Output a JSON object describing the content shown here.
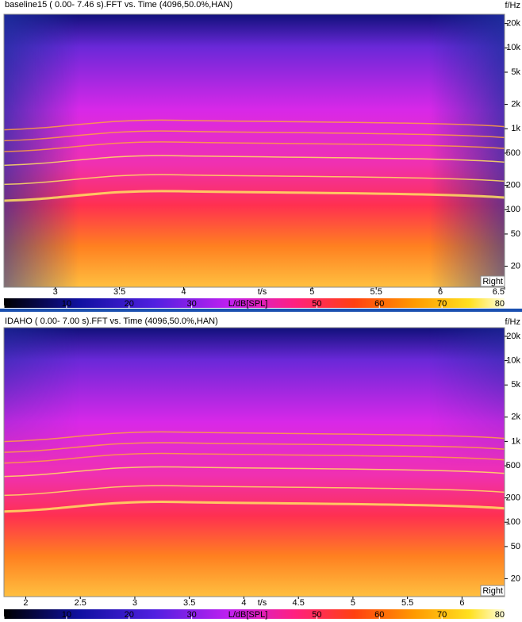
{
  "chart_data": [
    {
      "type": "spectrogram",
      "title": "baseline15 ( 0.00- 7.46 s).FFT vs. Time (4096,50.0%,HAN)",
      "x_label": "t/s",
      "y_label": "f/Hz",
      "channel": "Right",
      "log_y": true,
      "xlim": [
        2.6,
        6.5
      ],
      "xticks": [
        3,
        3.5,
        4,
        5,
        5.5,
        6,
        6.5
      ],
      "ylim": [
        11,
        26000
      ],
      "yticks": [
        {
          "value": 20000,
          "label": "20k"
        },
        {
          "value": 10000,
          "label": "10k"
        },
        {
          "value": 5000,
          "label": "5k"
        },
        {
          "value": 2000,
          "label": "2k"
        },
        {
          "value": 1000,
          "label": "1k"
        },
        500,
        200,
        100,
        50,
        20
      ],
      "colorbar_label": "L/dB[SPL]",
      "clim": [
        0,
        80
      ],
      "cticks": [
        0,
        10,
        20,
        30,
        50,
        60,
        70,
        80
      ]
    },
    {
      "type": "spectrogram",
      "title": "IDAHO ( 0.00- 7.00 s).FFT vs. Time (4096,50.0%,HAN)",
      "x_label": "t/s",
      "y_label": "f/Hz",
      "channel": "Right",
      "log_y": true,
      "xlim": [
        1.8,
        6.39
      ],
      "xticks": [
        2,
        2.5,
        3,
        3.5,
        4,
        4.5,
        5,
        5.5,
        6
      ],
      "ylim": [
        12,
        25600
      ],
      "yticks": [
        {
          "value": 20000,
          "label": "20k"
        },
        {
          "value": 10000,
          "label": "10k"
        },
        {
          "value": 5000,
          "label": "5k"
        },
        {
          "value": 2000,
          "label": "2k"
        },
        {
          "value": 1000,
          "label": "1k"
        },
        500,
        200,
        100,
        50,
        20
      ],
      "colorbar_label": "L/dB[SPL]",
      "clim": [
        0,
        80
      ],
      "cticks": [
        0,
        10,
        20,
        30,
        50,
        60,
        70,
        80
      ]
    }
  ]
}
